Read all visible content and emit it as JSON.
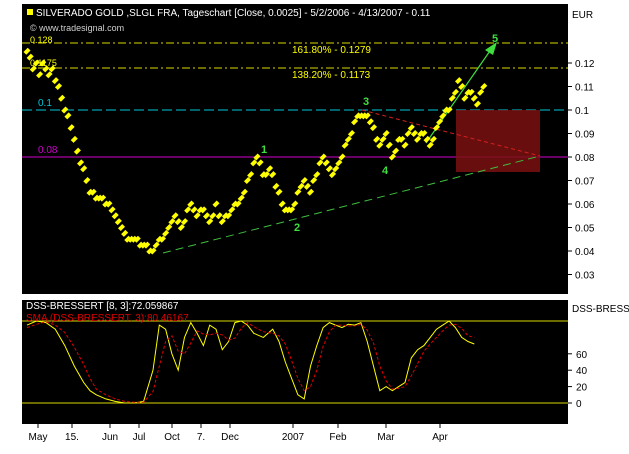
{
  "header": {
    "main_title": "SILVERADO GOLD    ,SLGL FRA, Tageschart [Close, 0.0025] - 5/2/2006 - 4/13/2007 - 0.11",
    "source": "© www.tradesignal.com",
    "currency": "EUR",
    "ind_title": "DSS-BRESSI"
  },
  "chart_data": [
    {
      "type": "line",
      "title": "SILVERADO GOLD    ,SLGL FRA, Tageschart [Close, 0.0025] - 5/2/2006 - 4/13/2007 - 0.11",
      "ylabel": "EUR",
      "ylim": [
        0.025,
        0.135
      ],
      "y_ticks": [
        "0.12",
        "0.11",
        "0.1",
        "0.09",
        "0.08",
        "0.07",
        "0.06",
        "0.05",
        "0.04",
        "0.03"
      ],
      "x_ticks": [
        "May",
        "15.",
        "Jun",
        "Jul",
        "Oct",
        "7.",
        "Dec",
        "2007",
        "Feb",
        "Mar",
        "Apr"
      ],
      "grid": false,
      "series": [
        {
          "color": "#ffff00",
          "style": "point-and-figure columns (Close, box 0.0025)",
          "points": [
            [
              0,
              0.125
            ],
            [
              2,
              0.1175
            ],
            [
              3,
              0.12
            ],
            [
              4,
              0.115
            ],
            [
              5,
              0.12
            ],
            [
              7,
              0.115
            ],
            [
              8,
              0.1175
            ],
            [
              10,
              0.11
            ],
            [
              20,
              0.065
            ],
            [
              22,
              0.0625
            ],
            [
              23,
              0.0625
            ],
            [
              26,
              0.06
            ],
            [
              32,
              0.045
            ],
            [
              34,
              0.045
            ],
            [
              37,
              0.0425
            ],
            [
              40,
              0.04
            ],
            [
              45,
              0.05
            ],
            [
              47,
              0.055
            ],
            [
              49,
              0.05
            ],
            [
              52,
              0.06
            ],
            [
              54,
              0.055
            ],
            [
              56,
              0.0575
            ],
            [
              58,
              0.0525
            ],
            [
              60,
              0.06
            ],
            [
              62,
              0.0525
            ],
            [
              64,
              0.055
            ],
            [
              69,
              0.065
            ],
            [
              73,
              0.08
            ],
            [
              75,
              0.0725
            ],
            [
              77,
              0.075
            ],
            [
              82,
              0.0575
            ],
            [
              84,
              0.0575
            ],
            [
              88,
              0.07
            ],
            [
              90,
              0.065
            ],
            [
              94,
              0.08
            ],
            [
              97,
              0.0725
            ],
            [
              99,
              0.0775
            ],
            [
              105,
              0.0975
            ],
            [
              108,
              0.0975
            ],
            [
              112,
              0.085
            ],
            [
              114,
              0.09
            ],
            [
              116,
              0.08
            ],
            [
              118,
              0.0875
            ],
            [
              120,
              0.085
            ],
            [
              122,
              0.0925
            ],
            [
              124,
              0.0875
            ],
            [
              126,
              0.09
            ],
            [
              128,
              0.085
            ],
            [
              132,
              0.0975
            ],
            [
              134,
              0.1
            ],
            [
              137,
              0.1125
            ],
            [
              139,
              0.105
            ],
            [
              141,
              0.1075
            ],
            [
              143,
              0.1025
            ],
            [
              145,
              0.11
            ]
          ]
        }
      ],
      "annotations": [
        {
          "text": "161.80% - 0.1279",
          "y": 0.1279
        },
        {
          "text": "138.20% - 0.1173",
          "y": 0.1173
        },
        {
          "text": "0.1",
          "y": 0.1
        },
        {
          "text": "0.08",
          "y": 0.08
        },
        {
          "text": "0.128",
          "y": 0.128
        },
        {
          "text": "0.1175",
          "y": 0.1175
        }
      ],
      "wave_labels": [
        "1",
        "2",
        "3",
        "4",
        "5"
      ]
    },
    {
      "type": "line",
      "title": "DSS-BRESSERT [8, 3]:72.059867 / SMA (DSS-BRESSERT, 3):80.46167",
      "legend": [
        {
          "text": "DSS-BRESSERT [8, 3]:72.059867",
          "color": "#ffff00"
        },
        {
          "text": "SMA (DSS-BRESSERT, 3):80.46167",
          "color": "#e00000"
        }
      ],
      "ylim": [
        -15,
        110
      ],
      "y_ticks": [
        "60",
        "40",
        "20",
        "0"
      ],
      "reference_lines": [
        100,
        0
      ],
      "series": [
        {
          "name": "DSS-BRESSERT [8, 3]:72.059867",
          "color": "#ffff00",
          "points": [
            [
              0,
              95
            ],
            [
              3,
              100
            ],
            [
              6,
              98
            ],
            [
              9,
              90
            ],
            [
              12,
              70
            ],
            [
              15,
              45
            ],
            [
              18,
              25
            ],
            [
              20,
              15
            ],
            [
              22,
              10
            ],
            [
              25,
              5
            ],
            [
              28,
              2
            ],
            [
              31,
              0
            ],
            [
              34,
              0
            ],
            [
              37,
              2
            ],
            [
              40,
              40
            ],
            [
              42,
              95
            ],
            [
              44,
              90
            ],
            [
              46,
              60
            ],
            [
              48,
              40
            ],
            [
              50,
              80
            ],
            [
              52,
              98
            ],
            [
              54,
              85
            ],
            [
              56,
              70
            ],
            [
              58,
              95
            ],
            [
              60,
              90
            ],
            [
              62,
              65
            ],
            [
              64,
              75
            ],
            [
              66,
              98
            ],
            [
              68,
              100
            ],
            [
              70,
              95
            ],
            [
              72,
              85
            ],
            [
              75,
              80
            ],
            [
              78,
              90
            ],
            [
              80,
              75
            ],
            [
              82,
              50
            ],
            [
              84,
              30
            ],
            [
              86,
              10
            ],
            [
              88,
              5
            ],
            [
              90,
              45
            ],
            [
              92,
              70
            ],
            [
              94,
              92
            ],
            [
              96,
              98
            ],
            [
              98,
              95
            ],
            [
              100,
              92
            ],
            [
              102,
              96
            ],
            [
              104,
              95
            ],
            [
              106,
              98
            ],
            [
              108,
              75
            ],
            [
              110,
              45
            ],
            [
              112,
              15
            ],
            [
              114,
              20
            ],
            [
              116,
              15
            ],
            [
              118,
              20
            ],
            [
              120,
              25
            ],
            [
              122,
              55
            ],
            [
              124,
              65
            ],
            [
              126,
              70
            ],
            [
              128,
              80
            ],
            [
              130,
              90
            ],
            [
              132,
              95
            ],
            [
              134,
              100
            ],
            [
              136,
              92
            ],
            [
              138,
              80
            ],
            [
              140,
              75
            ],
            [
              142,
              72
            ]
          ]
        },
        {
          "name": "SMA (DSS-BRESSERT, 3):80.46167",
          "color": "#e00000",
          "points": [
            [
              0,
              92
            ],
            [
              3,
              96
            ],
            [
              6,
              99
            ],
            [
              9,
              95
            ],
            [
              12,
              86
            ],
            [
              15,
              68
            ],
            [
              18,
              47
            ],
            [
              20,
              30
            ],
            [
              22,
              17
            ],
            [
              25,
              10
            ],
            [
              28,
              5
            ],
            [
              31,
              2
            ],
            [
              34,
              1
            ],
            [
              37,
              1
            ],
            [
              40,
              14
            ],
            [
              42,
              45
            ],
            [
              44,
              75
            ],
            [
              46,
              82
            ],
            [
              48,
              63
            ],
            [
              50,
              60
            ],
            [
              52,
              73
            ],
            [
              54,
              88
            ],
            [
              56,
              84
            ],
            [
              58,
              83
            ],
            [
              60,
              85
            ],
            [
              62,
              83
            ],
            [
              64,
              77
            ],
            [
              66,
              79
            ],
            [
              68,
              91
            ],
            [
              70,
              98
            ],
            [
              72,
              93
            ],
            [
              75,
              87
            ],
            [
              78,
              85
            ],
            [
              80,
              82
            ],
            [
              82,
              72
            ],
            [
              84,
              52
            ],
            [
              86,
              30
            ],
            [
              88,
              15
            ],
            [
              90,
              20
            ],
            [
              92,
              40
            ],
            [
              94,
              69
            ],
            [
              96,
              87
            ],
            [
              98,
              95
            ],
            [
              100,
              95
            ],
            [
              102,
              94
            ],
            [
              104,
              94
            ],
            [
              106,
              96
            ],
            [
              108,
              89
            ],
            [
              110,
              73
            ],
            [
              112,
              45
            ],
            [
              114,
              27
            ],
            [
              116,
              17
            ],
            [
              118,
              18
            ],
            [
              120,
              20
            ],
            [
              122,
              33
            ],
            [
              124,
              48
            ],
            [
              126,
              63
            ],
            [
              128,
              72
            ],
            [
              130,
              80
            ],
            [
              132,
              88
            ],
            [
              134,
              95
            ],
            [
              136,
              96
            ],
            [
              138,
              91
            ],
            [
              140,
              82
            ],
            [
              142,
              80
            ]
          ]
        }
      ]
    }
  ]
}
